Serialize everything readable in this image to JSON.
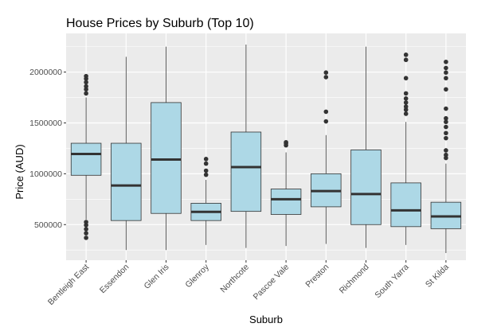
{
  "chart_data": {
    "type": "boxplot",
    "title": "House Prices by Suburb (Top 10)",
    "xlabel": "Suburb",
    "ylabel": "Price (AUD)",
    "ylim": [
      150000,
      2380000
    ],
    "yticks": [
      500000,
      1000000,
      1500000,
      2000000
    ],
    "ytick_labels": [
      "500000",
      "1000000",
      "1500000",
      "2000000"
    ],
    "grid": true,
    "legend": "none",
    "colors": {
      "panel": "#ebebeb",
      "grid": "#ffffff",
      "box_fill": "#add8e6",
      "box_line": "#333333",
      "text": "#4d4d4d"
    },
    "categories": [
      "Bentleigh East",
      "Essendon",
      "Glen Iris",
      "Glenroy",
      "Northcote",
      "Pascoe Vale",
      "Preston",
      "Richmond",
      "South Yarra",
      "St Kilda"
    ],
    "boxes": [
      {
        "category": "Bentleigh East",
        "whisker_low": 550000,
        "q1": 985000,
        "median": 1195000,
        "q3": 1300000,
        "whisker_high": 1750000,
        "outliers": [
          370000,
          415000,
          455000,
          495000,
          525000,
          1790000,
          1830000,
          1860000,
          1900000,
          1935000,
          1960000
        ]
      },
      {
        "category": "Essendon",
        "whisker_low": 250000,
        "q1": 540000,
        "median": 885000,
        "q3": 1300000,
        "whisker_high": 2150000,
        "outliers": []
      },
      {
        "category": "Glen Iris",
        "whisker_low": 250000,
        "q1": 610000,
        "median": 1140000,
        "q3": 1700000,
        "whisker_high": 2250000,
        "outliers": []
      },
      {
        "category": "Glenroy",
        "whisker_low": 300000,
        "q1": 540000,
        "median": 625000,
        "q3": 710000,
        "whisker_high": 940000,
        "outliers": [
          990000,
          1030000,
          1100000,
          1145000
        ]
      },
      {
        "category": "Northcote",
        "whisker_low": 270000,
        "q1": 630000,
        "median": 1065000,
        "q3": 1410000,
        "whisker_high": 2270000,
        "outliers": []
      },
      {
        "category": "Pascoe Vale",
        "whisker_low": 290000,
        "q1": 600000,
        "median": 750000,
        "q3": 850000,
        "whisker_high": 1210000,
        "outliers": [
          1280000,
          1300000,
          1310000
        ]
      },
      {
        "category": "Preston",
        "whisker_low": 310000,
        "q1": 675000,
        "median": 830000,
        "q3": 1000000,
        "whisker_high": 1380000,
        "outliers": [
          1515000,
          1610000,
          1950000,
          1995000
        ]
      },
      {
        "category": "Richmond",
        "whisker_low": 270000,
        "q1": 500000,
        "median": 800000,
        "q3": 1235000,
        "whisker_high": 2250000,
        "outliers": []
      },
      {
        "category": "South Yarra",
        "whisker_low": 300000,
        "q1": 480000,
        "median": 640000,
        "q3": 910000,
        "whisker_high": 1510000,
        "outliers": [
          1590000,
          1630000,
          1660000,
          1700000,
          1740000,
          1790000,
          1940000,
          2120000,
          2170000
        ]
      },
      {
        "category": "St Kilda",
        "whisker_low": 220000,
        "q1": 460000,
        "median": 580000,
        "q3": 720000,
        "whisker_high": 1100000,
        "outliers": [
          1155000,
          1185000,
          1230000,
          1350000,
          1400000,
          1460000,
          1510000,
          1545000,
          1640000,
          1830000,
          1940000,
          1995000,
          2040000,
          2100000
        ]
      }
    ]
  }
}
